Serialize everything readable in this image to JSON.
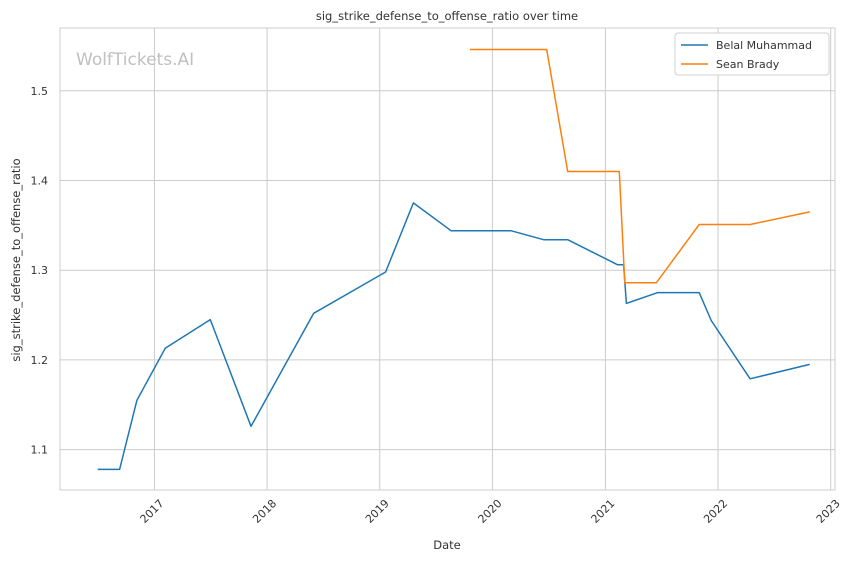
{
  "chart_data": {
    "type": "line",
    "title": "sig_strike_defense_to_offense_ratio over time",
    "xlabel": "Date",
    "ylabel": "sig_strike_defense_to_offense_ratio",
    "watermark": "WolfTickets.AI",
    "x_range": [
      "2016-03-01",
      "2023-01-15"
    ],
    "ylim": [
      1.055,
      1.57
    ],
    "x_ticks": [
      "2017",
      "2018",
      "2019",
      "2020",
      "2021",
      "2022",
      "2023"
    ],
    "y_ticks": [
      1.1,
      1.2,
      1.3,
      1.4,
      1.5
    ],
    "grid": true,
    "legend_position": "top-right",
    "series": [
      {
        "name": "Belal Muhammad",
        "color": "#1f77b4",
        "points": [
          [
            "2016-07-01",
            1.078
          ],
          [
            "2016-09-10",
            1.078
          ],
          [
            "2016-11-05",
            1.155
          ],
          [
            "2017-02-05",
            1.213
          ],
          [
            "2017-07-01",
            1.245
          ],
          [
            "2017-11-10",
            1.126
          ],
          [
            "2018-06-01",
            1.252
          ],
          [
            "2019-01-20",
            1.298
          ],
          [
            "2019-04-20",
            1.375
          ],
          [
            "2019-08-20",
            1.344
          ],
          [
            "2020-03-01",
            1.344
          ],
          [
            "2020-06-15",
            1.334
          ],
          [
            "2020-09-01",
            1.334
          ],
          [
            "2021-02-10",
            1.306
          ],
          [
            "2021-03-01",
            1.306
          ],
          [
            "2021-03-10",
            1.263
          ],
          [
            "2021-06-20",
            1.275
          ],
          [
            "2021-11-01",
            1.275
          ],
          [
            "2021-12-10",
            1.244
          ],
          [
            "2022-04-15",
            1.179
          ],
          [
            "2022-10-25",
            1.195
          ]
        ]
      },
      {
        "name": "Sean Brady",
        "color": "#ff7f0e",
        "points": [
          [
            "2019-10-20",
            1.546
          ],
          [
            "2020-06-25",
            1.546
          ],
          [
            "2020-09-01",
            1.41
          ],
          [
            "2021-02-15",
            1.41
          ],
          [
            "2021-03-05",
            1.286
          ],
          [
            "2021-06-15",
            1.286
          ],
          [
            "2021-11-01",
            1.351
          ],
          [
            "2022-04-15",
            1.351
          ],
          [
            "2022-10-25",
            1.365
          ]
        ]
      }
    ]
  }
}
